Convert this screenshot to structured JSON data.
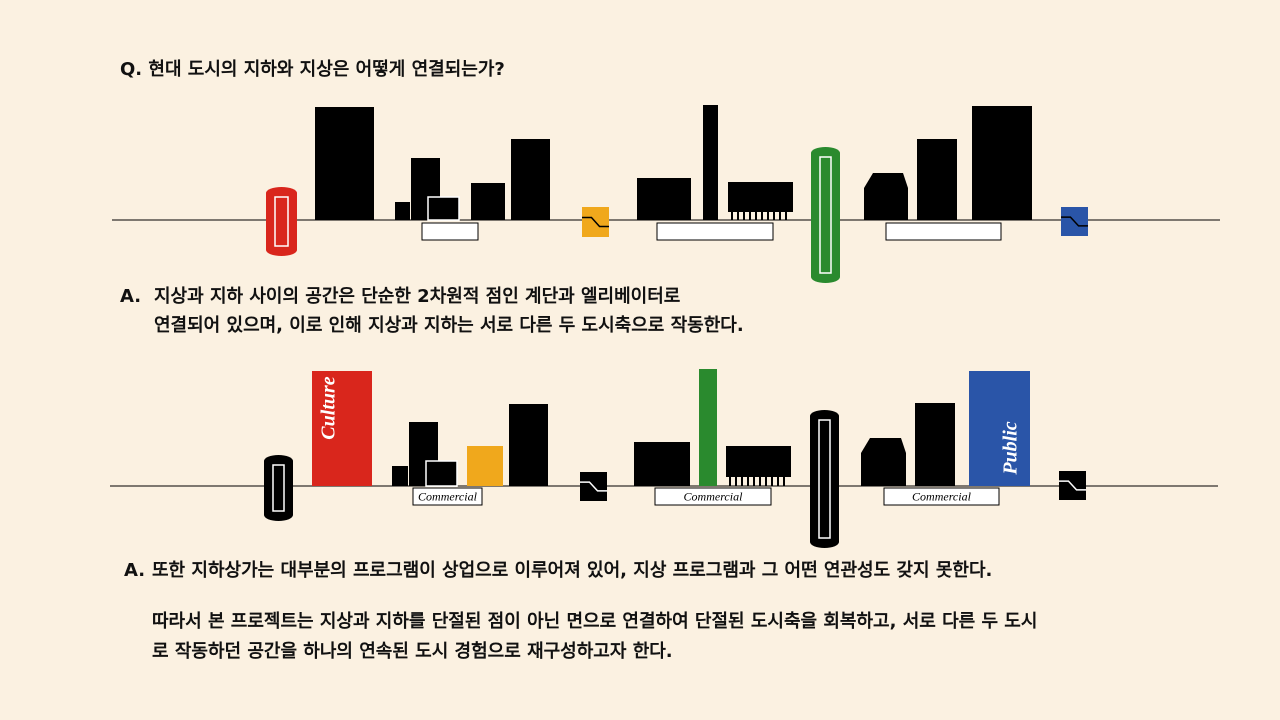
{
  "question": "Q. 현대 도시의 지하와 지상은 어떻게 연결되는가?",
  "answer_1": {
    "marker": "A.",
    "lines": [
      "지상과 지하 사이의 공간은 단순한 2차원적 점인 계단과 엘리베이터로",
      "연결되어 있으며, 이로 인해 지상과 지하는 서로 다른 두 도시축으로 작동한다."
    ]
  },
  "diagram_2": {
    "labels": [
      "Culture",
      "Public"
    ],
    "commercial": [
      "Commercial",
      "Commercial",
      "Commercial"
    ]
  },
  "answer_2": {
    "marker": "A.",
    "text": "또한 지하상가는 대부분의 프로그램이 상업으로 이루어져 있어, 지상 프로그램과 그 어떤 연관성도 갖지 못한다."
  },
  "conclusion": {
    "lines": [
      "따라서 본 프로젝트는 지상과 지하를 단절된 점이 아닌 면으로 연결하여 단절된 도시축을 회복하고, 서로 다른 두 도시",
      "로 작동하던 공간을 하나의 연속된 도시 경험으로 재구성하고자 한다."
    ]
  }
}
